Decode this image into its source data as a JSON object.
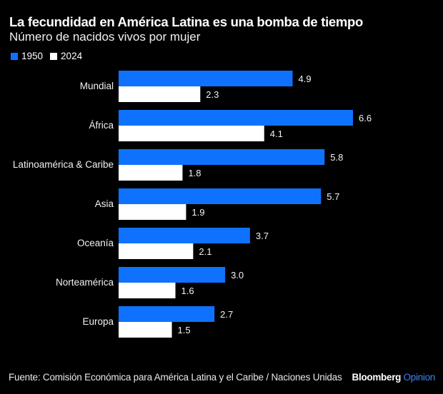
{
  "header": {
    "title": "La fecundidad en América Latina es una bomba de tiempo",
    "subtitle": "Número de nacidos vivos por mujer"
  },
  "legend": [
    {
      "label": "1950",
      "color": "#0f72ff"
    },
    {
      "label": "2024",
      "color": "#ffffff"
    }
  ],
  "chart_data": {
    "type": "bar",
    "orientation": "horizontal",
    "title": "La fecundidad en América Latina es una bomba de tiempo",
    "subtitle": "Número de nacidos vivos por mujer",
    "xlabel": "",
    "ylabel": "",
    "xlim": [
      0,
      6.6
    ],
    "grid": false,
    "legend_position": "top-left",
    "categories": [
      "Mundial",
      "África",
      "Latinoamérica & Caribe",
      "Asia",
      "Oceanía",
      "Norteamérica",
      "Europa"
    ],
    "series": [
      {
        "name": "1950",
        "color": "#0f72ff",
        "values": [
          4.9,
          6.6,
          5.8,
          5.7,
          3.7,
          3.0,
          2.7
        ],
        "labels": [
          "4.9",
          "6.6",
          "5.8",
          "5.7",
          "3.7",
          "3.0",
          "2.7"
        ]
      },
      {
        "name": "2024",
        "color": "#ffffff",
        "values": [
          2.3,
          4.1,
          1.8,
          1.9,
          2.1,
          1.6,
          1.5
        ],
        "labels": [
          "2.3",
          "4.1",
          "1.8",
          "1.9",
          "2.1",
          "1.6",
          "1.5"
        ]
      }
    ]
  },
  "footer": {
    "source": "Fuente: Comisión Económica para América Latina y el Caribe / Naciones Unidas",
    "brand_primary": "Bloomberg",
    "brand_secondary": "Opinion"
  }
}
